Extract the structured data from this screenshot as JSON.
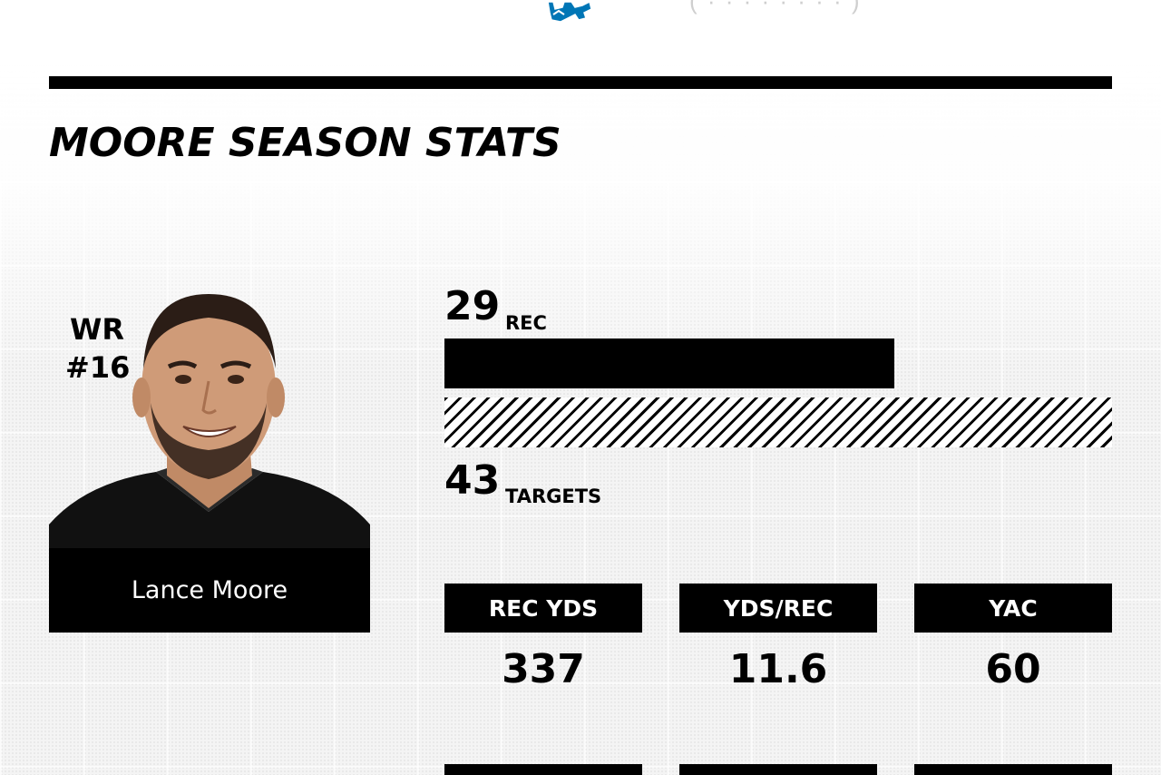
{
  "header": {
    "logo_icon": "lions-logo-icon",
    "ghost_text": "( · · · · · · · · )"
  },
  "section": {
    "title": "MOORE SEASON STATS"
  },
  "player": {
    "position": "WR",
    "number": "#16",
    "name": "Lance Moore",
    "photo_icon": "player-headshot"
  },
  "receptions": {
    "rec_value": "29",
    "rec_label": "REC",
    "targets_value": "43",
    "targets_label": "TARGETS",
    "catch_fraction": 0.6744
  },
  "stats": [
    {
      "label": "REC YDS",
      "value": "337"
    },
    {
      "label": "YDS/REC",
      "value": "11.6"
    },
    {
      "label": "YAC",
      "value": "60"
    }
  ],
  "colors": {
    "primary": "#000000",
    "background": "#f4f4f4",
    "text_on_dark": "#ffffff",
    "logo_blue": "#0076b6"
  }
}
